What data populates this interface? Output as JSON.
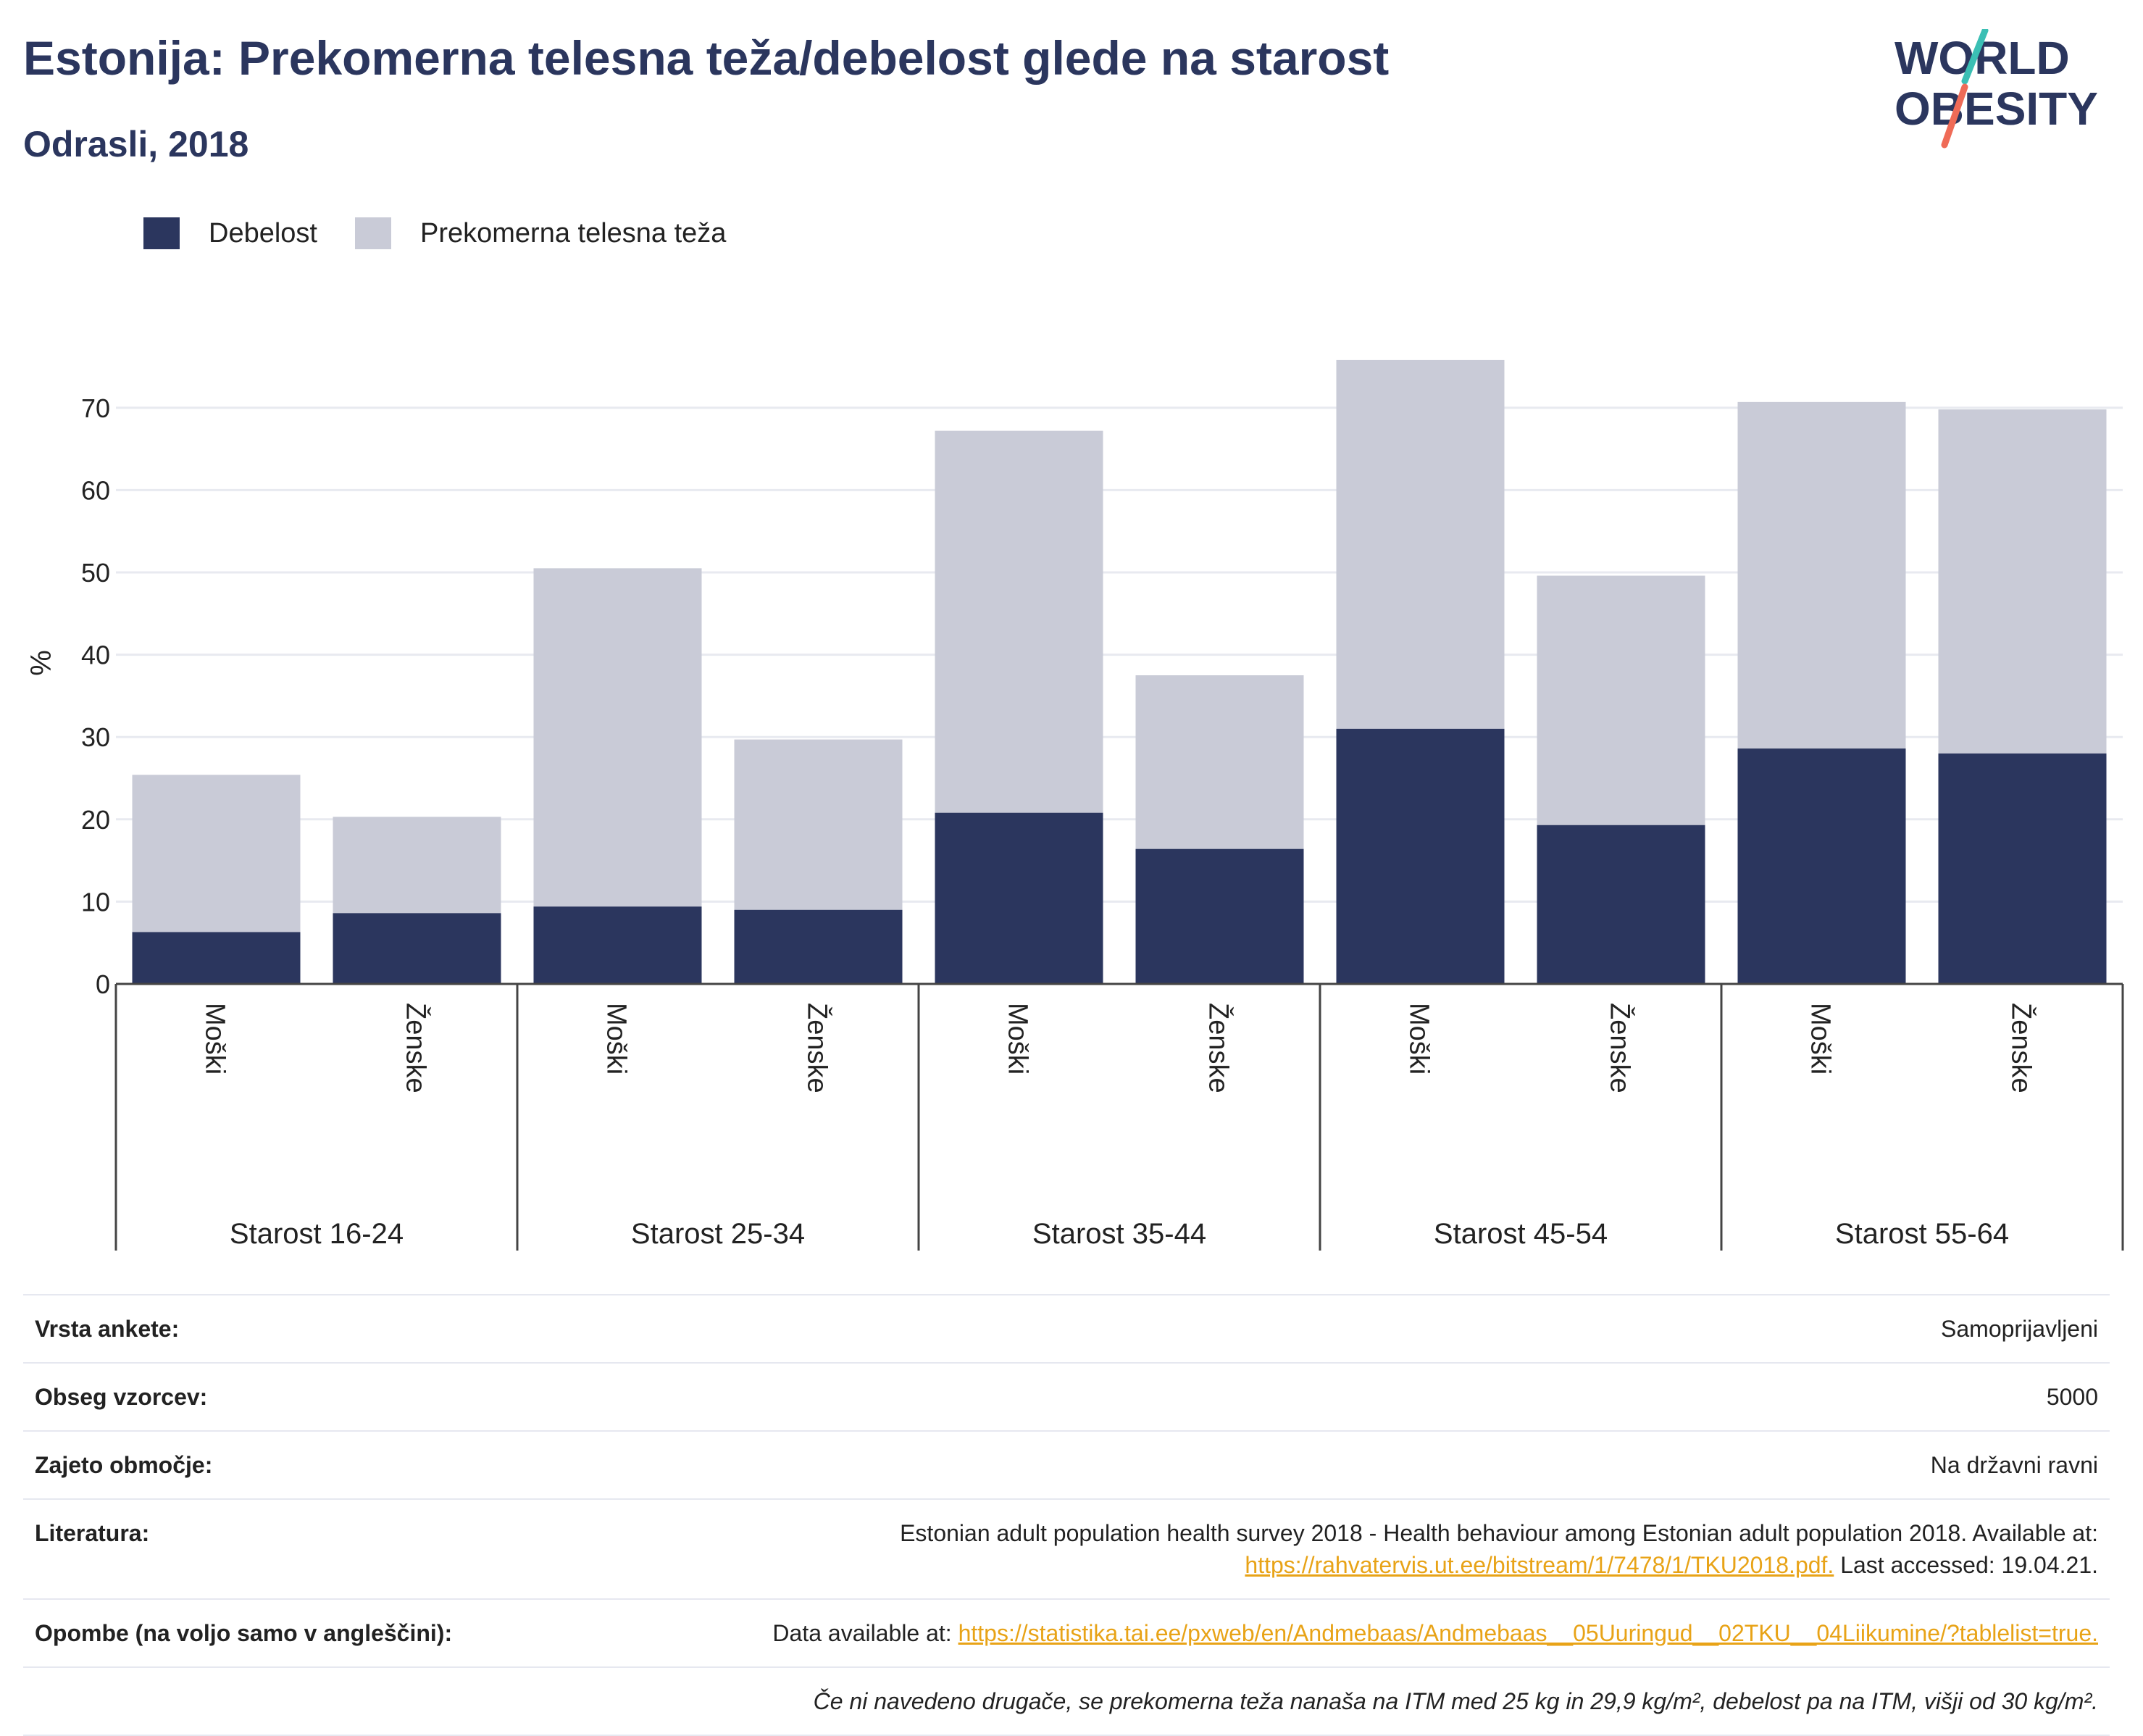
{
  "header": {
    "title": "Estonija: Prekomerna telesna teža/debelost glede na starost",
    "subtitle": "Odrasli, 2018"
  },
  "logo": {
    "line1": "WORLD",
    "line2": "OBESITY"
  },
  "colors": {
    "obesity": "#2b365e",
    "overweight": "#c9cbd7",
    "accent": "#e8a317",
    "title": "#2b365e"
  },
  "chart_data": {
    "type": "bar",
    "stacked": true,
    "ylabel": "%",
    "ylim": [
      0,
      78
    ],
    "yticks": [
      0,
      10,
      20,
      30,
      40,
      50,
      60,
      70
    ],
    "grid": true,
    "legend_position": "top-left",
    "groups": [
      "Starost 16-24",
      "Starost 25-34",
      "Starost 35-44",
      "Starost 45-54",
      "Starost 55-64"
    ],
    "categories": [
      "Moški",
      "Ženske",
      "Moški",
      "Ženske",
      "Moški",
      "Ženske",
      "Moški",
      "Ženske",
      "Moški",
      "Ženske"
    ],
    "series": [
      {
        "name": "Debelost",
        "values": [
          6.3,
          8.6,
          9.4,
          9.0,
          20.8,
          16.4,
          31.0,
          19.3,
          28.6,
          28.0
        ]
      },
      {
        "name": "Prekomerna telesna teža",
        "values": [
          19.1,
          11.7,
          41.1,
          20.7,
          46.4,
          21.1,
          44.8,
          30.3,
          42.1,
          41.8
        ]
      }
    ]
  },
  "info": [
    {
      "label": "Vrsta ankete:",
      "value": "Samoprijavljeni"
    },
    {
      "label": "Obseg vzorcev:",
      "value": "5000"
    },
    {
      "label": "Zajeto območje:",
      "value": "Na državni ravni"
    },
    {
      "label": "Literatura:",
      "text1": "Estonian adult population health survey 2018 - Health behaviour among Estonian adult population 2018. Available at:",
      "link": "https://rahvatervis.ut.ee/bitstream/1/7478/1/TKU2018.pdf.",
      "text2": " Last accessed: 19.04.21."
    },
    {
      "label": "Opombe (na voljo samo v angleščini):",
      "text1": "Data available at: ",
      "link": "https://statistika.tai.ee/pxweb/en/Andmebaas/Andmebaas__05Uuringud__02TKU__04Liikumine/?tablelist=true."
    },
    {
      "label": "",
      "note": "Če ni navedeno drugače, se prekomerna teža nanaša na ITM med 25 kg in 29,9 kg/m², debelost pa na ITM, višji od 30 kg/m²."
    }
  ]
}
